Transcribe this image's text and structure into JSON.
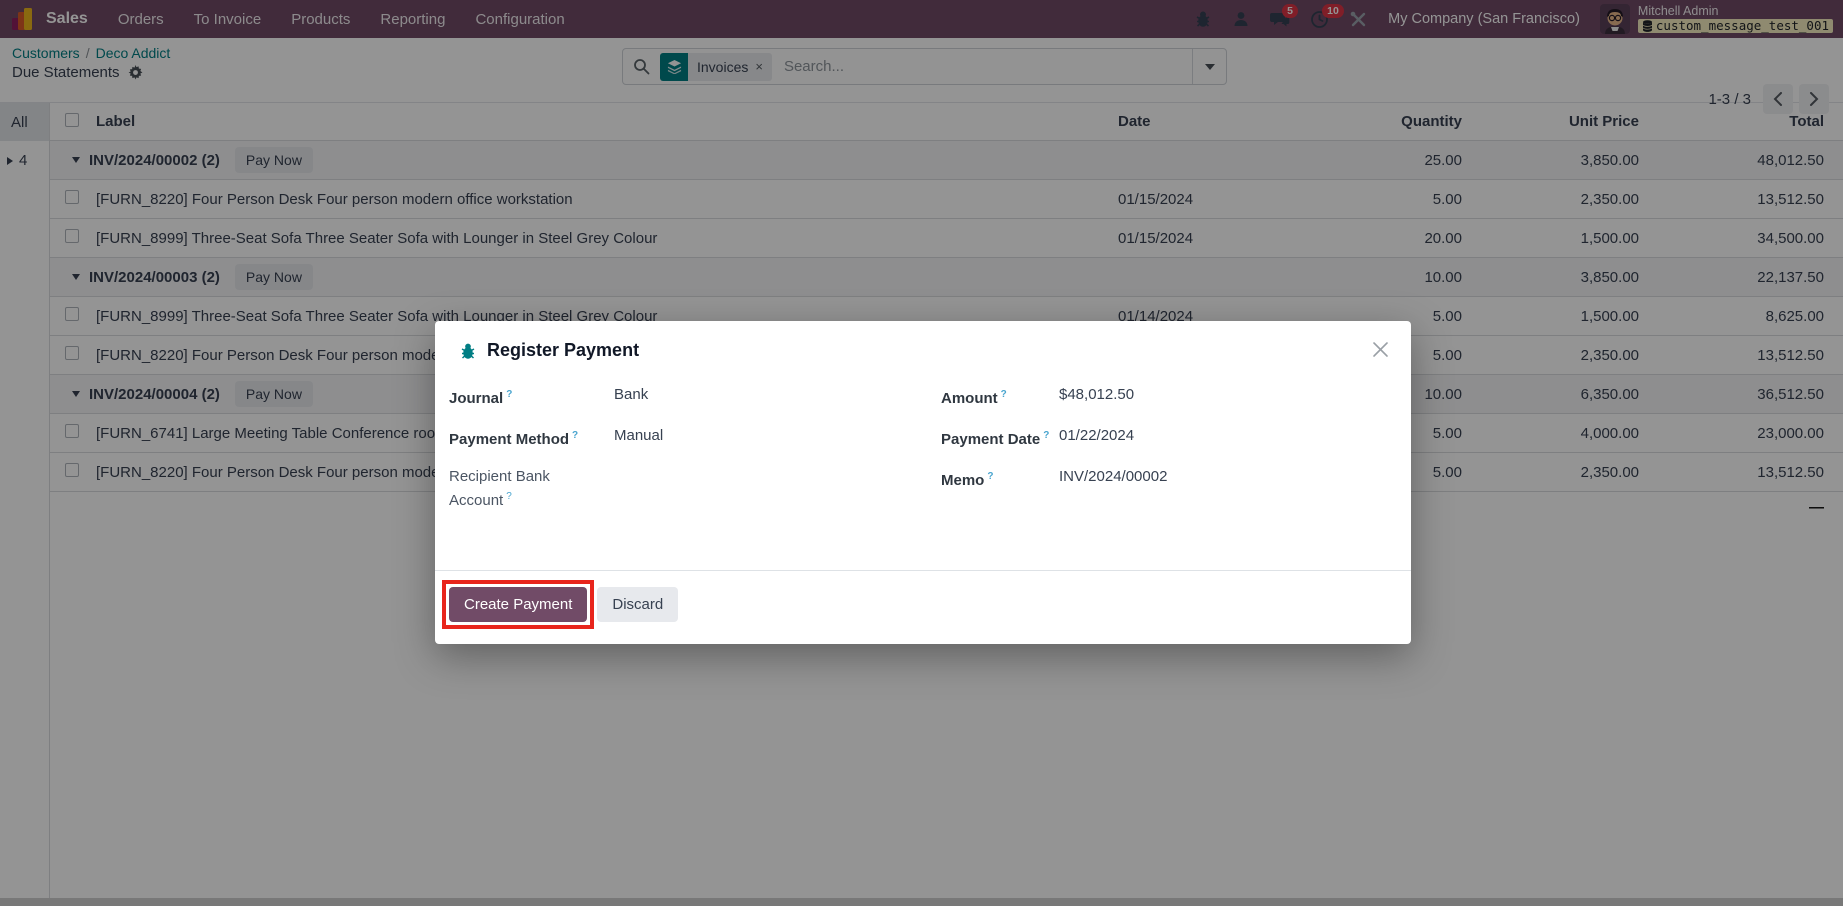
{
  "colors": {
    "primary": "#714B67",
    "teal": "#017e84",
    "badge-red": "#dc3545",
    "annotation-red": "#e8251c",
    "help-blue": "#4aa5cf",
    "db-badge-bg": "#f6eec2"
  },
  "topbar": {
    "app_name": "Sales",
    "menus": [
      "Orders",
      "To Invoice",
      "Products",
      "Reporting",
      "Configuration"
    ],
    "systray": {
      "message_badge": "5",
      "activity_badge": "10",
      "company": "My Company (San Francisco)",
      "user_name": "Mitchell Admin",
      "db_name": "custom_message_test_001"
    }
  },
  "breadcrumb": {
    "link1": "Customers",
    "separator": "/",
    "link2": "Deco Addict",
    "page_title": "Due Statements"
  },
  "search": {
    "facet_label": "Invoices",
    "remove": "×",
    "placeholder": "Search..."
  },
  "pager": {
    "text": "1-3 / 3"
  },
  "sidebar": {
    "all_label": "All",
    "group_count": "4"
  },
  "table": {
    "columns": {
      "label": "Label",
      "date": "Date",
      "qty": "Quantity",
      "unit": "Unit Price",
      "total": "Total"
    },
    "rows": [
      {
        "type": "group",
        "label": "INV/2024/00002 (2)",
        "pay": "Pay Now",
        "date": "",
        "qty": "25.00",
        "unit": "3,850.00",
        "total": "48,012.50"
      },
      {
        "type": "line",
        "label": "[FURN_8220] Four Person Desk Four person modern office workstation",
        "date": "01/15/2024",
        "qty": "5.00",
        "unit": "2,350.00",
        "total": "13,512.50"
      },
      {
        "type": "line",
        "label": "[FURN_8999] Three-Seat Sofa Three Seater Sofa with Lounger in Steel Grey Colour",
        "date": "01/15/2024",
        "qty": "20.00",
        "unit": "1,500.00",
        "total": "34,500.00"
      },
      {
        "type": "group",
        "label": "INV/2024/00003 (2)",
        "pay": "Pay Now",
        "date": "",
        "qty": "10.00",
        "unit": "3,850.00",
        "total": "22,137.50"
      },
      {
        "type": "line",
        "label": "[FURN_8999] Three-Seat Sofa Three Seater Sofa with Lounger in Steel Grey Colour",
        "date": "01/14/2024",
        "qty": "5.00",
        "unit": "1,500.00",
        "total": "8,625.00"
      },
      {
        "type": "line",
        "label": "[FURN_8220] Four Person Desk Four person modern office workstation",
        "date": "",
        "qty": "5.00",
        "unit": "2,350.00",
        "total": "13,512.50"
      },
      {
        "type": "group",
        "label": "INV/2024/00004 (2)",
        "pay": "Pay Now",
        "date": "",
        "qty": "10.00",
        "unit": "6,350.00",
        "total": "36,512.50"
      },
      {
        "type": "line",
        "label": "[FURN_6741] Large Meeting Table Conference room",
        "date": "",
        "qty": "5.00",
        "unit": "4,000.00",
        "total": "23,000.00"
      },
      {
        "type": "line",
        "label": "[FURN_8220] Four Person Desk Four person modern office workstation",
        "date": "",
        "qty": "5.00",
        "unit": "2,350.00",
        "total": "13,512.50"
      }
    ],
    "aggregate_dash": "—"
  },
  "modal": {
    "title": "Register Payment",
    "help_marker": "?",
    "fields_left": [
      {
        "label": "Journal",
        "value": "Bank",
        "required": true
      },
      {
        "label": "Payment Method",
        "value": "Manual",
        "required": true
      },
      {
        "label": "Recipient Bank Account",
        "value": "",
        "required": false
      }
    ],
    "fields_right": [
      {
        "label": "Amount",
        "value": "$48,012.50",
        "required": true
      },
      {
        "label": "Payment Date",
        "value": "01/22/2024",
        "required": true
      },
      {
        "label": "Memo",
        "value": "INV/2024/00002",
        "required": true
      }
    ],
    "buttons": {
      "create": "Create Payment",
      "discard": "Discard"
    }
  }
}
